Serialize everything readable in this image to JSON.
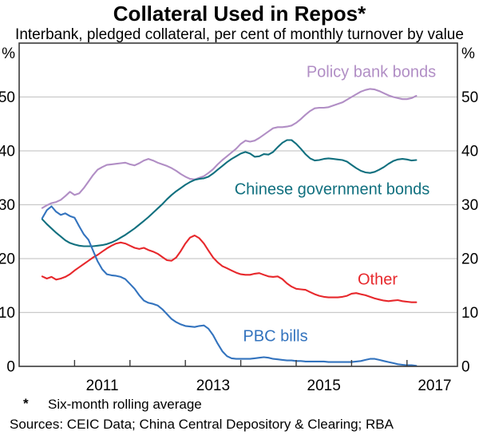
{
  "title": "Collateral Used in Repos*",
  "subtitle": "Interbank, pledged collateral, per cent of monthly turnover by value",
  "footnote": {
    "marker": "*",
    "text": "Six-month rolling average"
  },
  "sources": "Sources: CEIC Data; China Central Depository & Clearing; RBA",
  "colors": {
    "axis": "#3a3a3a",
    "gridline": "#c9c9c9",
    "text": "#000000"
  },
  "chart_data": {
    "type": "line",
    "title": "Collateral Used in Repos*",
    "subtitle": "Interbank, pledged collateral, per cent of monthly turnover by value",
    "y_axis_unit": "%",
    "xlim": [
      2010,
      2017.91
    ],
    "ylim": [
      0,
      60
    ],
    "y_ticks": [
      0,
      10,
      20,
      30,
      40,
      50
    ],
    "x_ticks": [
      2011,
      2012,
      2013,
      2014,
      2015,
      2016,
      2017
    ],
    "x_labels": [
      2011,
      2013,
      2015,
      2017
    ],
    "grid": "horizontal",
    "legend_position": "inline-labels",
    "x_start": 2010.4167,
    "x_step": 0.083333,
    "x_unit": "decimal-year, monthly points, Jun 2010 - Mar 2017",
    "series": [
      {
        "name": "Policy bank bonds",
        "color": "#b18ec5",
        "values": [
          29.4,
          29.9,
          30.3,
          30.5,
          30.9,
          31.6,
          32.4,
          31.8,
          32.1,
          33.1,
          34.3,
          35.5,
          36.5,
          37.0,
          37.4,
          37.5,
          37.6,
          37.7,
          37.8,
          37.5,
          37.3,
          37.7,
          38.2,
          38.5,
          38.2,
          37.8,
          37.5,
          37.2,
          36.8,
          36.3,
          35.7,
          35.2,
          34.8,
          34.7,
          35.0,
          35.3,
          35.9,
          36.6,
          37.5,
          38.3,
          39.0,
          39.7,
          40.4,
          41.3,
          41.9,
          41.7,
          41.9,
          42.4,
          43.0,
          43.6,
          44.2,
          44.4,
          44.4,
          44.5,
          44.7,
          45.2,
          45.9,
          46.7,
          47.4,
          47.9,
          48.0,
          48.0,
          48.1,
          48.4,
          48.7,
          49.0,
          49.5,
          50.0,
          50.5,
          51.0,
          51.3,
          51.5,
          51.4,
          51.1,
          50.7,
          50.3,
          50.0,
          49.8,
          49.6,
          49.6,
          49.8,
          50.2
        ]
      },
      {
        "name": "Chinese government bonds",
        "color": "#11707f",
        "values": [
          27.3,
          26.4,
          25.6,
          24.8,
          24.1,
          23.4,
          22.9,
          22.6,
          22.4,
          22.3,
          22.3,
          22.3,
          22.4,
          22.5,
          22.7,
          23.0,
          23.4,
          23.9,
          24.4,
          25.0,
          25.6,
          26.3,
          27.0,
          27.7,
          28.5,
          29.3,
          30.1,
          31.0,
          31.8,
          32.5,
          33.1,
          33.7,
          34.2,
          34.6,
          34.8,
          34.9,
          35.2,
          35.8,
          36.5,
          37.2,
          37.9,
          38.5,
          39.0,
          39.5,
          39.8,
          39.5,
          38.9,
          39.0,
          39.4,
          39.3,
          39.8,
          40.7,
          41.5,
          42.0,
          42.0,
          41.3,
          40.4,
          39.4,
          38.6,
          38.2,
          38.3,
          38.5,
          38.6,
          38.5,
          38.4,
          38.3,
          38.0,
          37.4,
          36.8,
          36.3,
          36.0,
          35.9,
          36.1,
          36.5,
          37.0,
          37.6,
          38.1,
          38.4,
          38.5,
          38.4,
          38.2,
          38.3
        ]
      },
      {
        "name": "Other",
        "color": "#e7282c",
        "values": [
          16.7,
          16.3,
          16.6,
          16.1,
          16.3,
          16.6,
          17.1,
          17.8,
          18.4,
          19.0,
          19.6,
          20.2,
          20.7,
          21.3,
          21.9,
          22.4,
          22.8,
          23.0,
          22.8,
          22.4,
          22.0,
          21.8,
          22.0,
          21.6,
          21.3,
          20.9,
          20.3,
          19.7,
          19.6,
          20.2,
          21.4,
          22.8,
          23.9,
          24.3,
          23.8,
          22.8,
          21.5,
          20.2,
          19.3,
          18.6,
          18.2,
          17.8,
          17.4,
          17.1,
          17.0,
          17.0,
          17.2,
          17.3,
          17.0,
          16.7,
          16.6,
          16.7,
          16.2,
          15.4,
          14.8,
          14.4,
          14.3,
          14.2,
          13.8,
          13.4,
          13.1,
          12.9,
          12.8,
          12.8,
          12.8,
          12.9,
          13.1,
          13.5,
          13.6,
          13.4,
          13.2,
          12.9,
          12.6,
          12.4,
          12.2,
          12.1,
          12.2,
          12.3,
          12.1,
          12.0,
          11.9,
          11.9
        ]
      },
      {
        "name": "PBC bills",
        "color": "#3373be",
        "values": [
          27.5,
          29.0,
          29.7,
          28.7,
          28.1,
          28.4,
          27.9,
          27.6,
          26.0,
          24.5,
          23.5,
          21.5,
          19.5,
          18.0,
          17.1,
          16.9,
          16.8,
          16.6,
          16.2,
          15.3,
          14.4,
          13.2,
          12.2,
          11.8,
          11.6,
          11.3,
          10.6,
          9.7,
          8.8,
          8.2,
          7.8,
          7.5,
          7.4,
          7.3,
          7.5,
          7.6,
          7.0,
          5.8,
          4.2,
          2.8,
          1.9,
          1.5,
          1.4,
          1.4,
          1.4,
          1.4,
          1.5,
          1.6,
          1.7,
          1.6,
          1.4,
          1.3,
          1.2,
          1.1,
          1.1,
          1.0,
          1.0,
          0.9,
          0.9,
          0.9,
          0.9,
          0.9,
          0.8,
          0.8,
          0.8,
          0.8,
          0.8,
          0.8,
          0.9,
          1.0,
          1.2,
          1.4,
          1.4,
          1.2,
          1.0,
          0.8,
          0.6,
          0.4,
          0.3,
          0.2,
          0.2,
          0.1
        ]
      }
    ]
  }
}
